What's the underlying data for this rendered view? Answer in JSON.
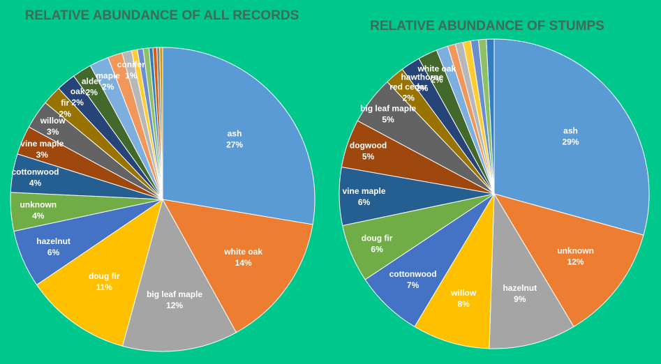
{
  "chart_data": [
    {
      "type": "pie",
      "title": "RELATIVE ABUNDANCE OF ALL RECORDS",
      "slices": [
        {
          "label": "ash",
          "value": 27,
          "value_label": "27%",
          "color": "#5b9bd5",
          "show_label": true
        },
        {
          "label": "white oak",
          "value": 14,
          "value_label": "14%",
          "color": "#ed7d31",
          "show_label": true
        },
        {
          "label": "big leaf maple",
          "value": 12,
          "value_label": "12%",
          "color": "#a5a5a5",
          "show_label": true
        },
        {
          "label": "doug fir",
          "value": 11,
          "value_label": "11%",
          "color": "#ffc000",
          "show_label": true
        },
        {
          "label": "hazelnut",
          "value": 6,
          "value_label": "6%",
          "color": "#4472c4",
          "show_label": true
        },
        {
          "label": "unknown",
          "value": 4,
          "value_label": "4%",
          "color": "#70ad47",
          "show_label": true
        },
        {
          "label": "cottonwood",
          "value": 4,
          "value_label": "4%",
          "color": "#255e91",
          "show_label": true
        },
        {
          "label": "vine maple",
          "value": 3,
          "value_label": "3%",
          "color": "#9e480e",
          "show_label": true
        },
        {
          "label": "willow",
          "value": 3,
          "value_label": "3%",
          "color": "#636363",
          "show_label": true
        },
        {
          "label": "fir",
          "value": 2,
          "value_label": "2%",
          "color": "#997300",
          "show_label": true
        },
        {
          "label": "oak",
          "value": 2,
          "value_label": "2%",
          "color": "#264478",
          "show_label": true
        },
        {
          "label": "alder",
          "value": 2,
          "value_label": "2%",
          "color": "#43682b",
          "show_label": true
        },
        {
          "label": "maple",
          "value": 2,
          "value_label": "2%",
          "color": "#7cafdd",
          "show_label": true
        },
        {
          "label": "",
          "value": 1.5,
          "value_label": "",
          "color": "#f1975a",
          "show_label": false
        },
        {
          "label": "conifer",
          "value": 1,
          "value_label": "1%",
          "color": "#b7b7b7",
          "show_label": true
        },
        {
          "label": "",
          "value": 0.6,
          "value_label": "",
          "color": "#ffcd33",
          "show_label": false
        },
        {
          "label": "",
          "value": 0.6,
          "value_label": "",
          "color": "#698ed0",
          "show_label": false
        },
        {
          "label": "",
          "value": 0.6,
          "value_label": "",
          "color": "#8cc168",
          "show_label": false
        },
        {
          "label": "",
          "value": 0.4,
          "value_label": "",
          "color": "#327dc2",
          "show_label": false
        },
        {
          "label": "",
          "value": 0.4,
          "value_label": "",
          "color": "#d26012",
          "show_label": false
        },
        {
          "label": "",
          "value": 0.3,
          "value_label": "",
          "color": "#848484",
          "show_label": false
        },
        {
          "label": "",
          "value": 0.3,
          "value_label": "",
          "color": "#cc9a00",
          "show_label": false
        }
      ]
    },
    {
      "type": "pie",
      "title": "RELATIVE ABUNDANCE OF STUMPS",
      "slices": [
        {
          "label": "ash",
          "value": 29,
          "value_label": "29%",
          "color": "#5b9bd5",
          "show_label": true
        },
        {
          "label": "unknown",
          "value": 12,
          "value_label": "12%",
          "color": "#ed7d31",
          "show_label": true
        },
        {
          "label": "hazelnut",
          "value": 9,
          "value_label": "9%",
          "color": "#a5a5a5",
          "show_label": true
        },
        {
          "label": "willow",
          "value": 8,
          "value_label": "8%",
          "color": "#ffc000",
          "show_label": true
        },
        {
          "label": "cottonwood",
          "value": 7,
          "value_label": "7%",
          "color": "#4472c4",
          "show_label": true
        },
        {
          "label": "doug fir",
          "value": 6,
          "value_label": "6%",
          "color": "#70ad47",
          "show_label": true
        },
        {
          "label": "vine maple",
          "value": 6,
          "value_label": "6%",
          "color": "#255e91",
          "show_label": true
        },
        {
          "label": "dogwood",
          "value": 5,
          "value_label": "5%",
          "color": "#9e480e",
          "show_label": true
        },
        {
          "label": "big leaf maple",
          "value": 5,
          "value_label": "5%",
          "color": "#636363",
          "show_label": true
        },
        {
          "label": "red cedar",
          "value": 2,
          "value_label": "2%",
          "color": "#997300",
          "show_label": true
        },
        {
          "label": "hawthorne",
          "value": 2,
          "value_label": "2%",
          "color": "#264478",
          "show_label": true
        },
        {
          "label": "white oak",
          "value": 2,
          "value_label": "2%",
          "color": "#43682b",
          "show_label": true
        },
        {
          "label": "",
          "value": 1.2,
          "value_label": "",
          "color": "#7cafdd",
          "show_label": false
        },
        {
          "label": "",
          "value": 0.8,
          "value_label": "",
          "color": "#f1975a",
          "show_label": false
        },
        {
          "label": "",
          "value": 0.8,
          "value_label": "",
          "color": "#b7b7b7",
          "show_label": false
        },
        {
          "label": "",
          "value": 0.8,
          "value_label": "",
          "color": "#ffcd33",
          "show_label": false
        },
        {
          "label": "",
          "value": 0.8,
          "value_label": "",
          "color": "#698ed0",
          "show_label": false
        },
        {
          "label": "",
          "value": 0.8,
          "value_label": "",
          "color": "#8cc168",
          "show_label": false
        },
        {
          "label": "",
          "value": 0.8,
          "value_label": "",
          "color": "#327dc2",
          "show_label": false
        }
      ]
    }
  ]
}
